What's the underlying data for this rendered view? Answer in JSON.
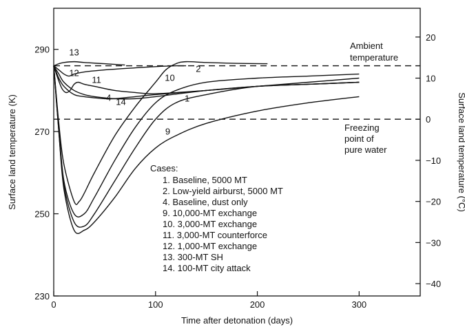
{
  "chart_data": {
    "type": "line",
    "xlabel": "Time after detonation (days)",
    "ylabel_left": "Surface land temperature (K)",
    "ylabel_right": "Surface land temperature (°C)",
    "xlim": [
      0,
      360
    ],
    "ylim": [
      230,
      300
    ],
    "x_ticks": [
      "0",
      "100",
      "200",
      "300"
    ],
    "y_left_ticks": [
      "230",
      "250",
      "270",
      "290"
    ],
    "y_right_ticks": [
      "20",
      "10",
      "0",
      "−10",
      "−20",
      "−30",
      "−40"
    ],
    "reference_lines": {
      "ambient": {
        "y": 286,
        "label_lines": [
          "Ambient",
          "temperature"
        ]
      },
      "freezing": {
        "y": 273,
        "label_lines": [
          "Freezing",
          "point of",
          "pure water"
        ]
      }
    },
    "legend": {
      "title": "Cases:",
      "items": [
        "1.   Baseline, 5000 MT",
        "2.   Low-yield airburst, 5000 MT",
        "4.   Baseline, dust only",
        "9.   10,000-MT exchange",
        "10.   3,000-MT exchange",
        "11.   3,000-MT counterforce",
        "12.   1,000-MT exchange",
        "13.   300-MT SH",
        "14.   100-MT city attack"
      ]
    },
    "series": [
      {
        "name": "1",
        "x": [
          0,
          5,
          10,
          20,
          30,
          40,
          60,
          80,
          100,
          120,
          150,
          200,
          250,
          300
        ],
        "y": [
          286,
          270,
          257,
          248,
          247,
          250,
          258,
          266,
          273,
          277,
          279,
          281,
          281.5,
          282
        ]
      },
      {
        "name": "2",
        "x": [
          0,
          5,
          10,
          20,
          30,
          40,
          60,
          80,
          100,
          120,
          150,
          200,
          250,
          300
        ],
        "y": [
          286,
          271,
          258,
          250,
          250,
          254,
          263,
          271,
          277,
          280,
          282,
          283,
          283.5,
          284
        ]
      },
      {
        "name": "4",
        "x": [
          0,
          5,
          10,
          20,
          30,
          40,
          60,
          80,
          100,
          150,
          200,
          250,
          300
        ],
        "y": [
          286,
          284,
          282,
          280,
          279,
          278.5,
          278,
          278,
          278.5,
          280,
          281,
          281.5,
          282
        ]
      },
      {
        "name": "9",
        "x": [
          0,
          5,
          10,
          20,
          30,
          40,
          60,
          80,
          100,
          120,
          150,
          200,
          250,
          300
        ],
        "y": [
          286,
          270,
          256,
          246,
          246,
          248,
          254,
          261,
          266,
          269,
          272,
          275,
          277,
          278.5
        ]
      },
      {
        "name": "10",
        "x": [
          0,
          5,
          10,
          20,
          25,
          30,
          40,
          60,
          80,
          100,
          110,
          120,
          130,
          150,
          180,
          210
        ],
        "y": [
          286,
          272,
          262,
          253,
          253,
          255,
          260,
          269,
          276,
          282,
          285,
          286.5,
          287,
          286.8,
          286.6,
          286.5
        ]
      },
      {
        "name": "11",
        "x": [
          0,
          4,
          8,
          12,
          16,
          20,
          24,
          30,
          40,
          60,
          80,
          100,
          150,
          200,
          250,
          300
        ],
        "y": [
          286,
          283,
          280.5,
          279.5,
          280,
          281.5,
          282,
          281.5,
          281,
          280,
          279.5,
          279.2,
          280,
          281,
          282,
          283
        ]
      },
      {
        "name": "12",
        "x": [
          0,
          5,
          10,
          15,
          20,
          30,
          50,
          80,
          100,
          120,
          130
        ],
        "y": [
          286,
          285,
          284,
          283.5,
          284,
          284.5,
          285,
          285.5,
          285.8,
          286,
          286
        ]
      },
      {
        "name": "13",
        "x": [
          0,
          5,
          10,
          20,
          30,
          50,
          70
        ],
        "y": [
          286,
          286.5,
          286.8,
          287,
          286.8,
          286.5,
          286.2
        ]
      },
      {
        "name": "14",
        "x": [
          0,
          5,
          10,
          20,
          30,
          40,
          50,
          60,
          80,
          100,
          150,
          200,
          250,
          300
        ],
        "y": [
          286,
          283,
          281,
          279,
          278.5,
          278.2,
          278,
          278,
          278.5,
          279,
          280,
          281,
          281.5,
          282
        ]
      }
    ],
    "curve_labels": [
      {
        "text": "13",
        "x": 20,
        "y": 288.5
      },
      {
        "text": "12",
        "x": 20,
        "y": 283.5
      },
      {
        "text": "11",
        "x": 42,
        "y": 281.8
      },
      {
        "text": "10",
        "x": 114,
        "y": 282.3
      },
      {
        "text": "2",
        "x": 142,
        "y": 284.5
      },
      {
        "text": "4",
        "x": 54,
        "y": 277.5
      },
      {
        "text": "14",
        "x": 66,
        "y": 276.5
      },
      {
        "text": "1",
        "x": 131,
        "y": 277.3
      },
      {
        "text": "9",
        "x": 112,
        "y": 269.3
      }
    ]
  }
}
